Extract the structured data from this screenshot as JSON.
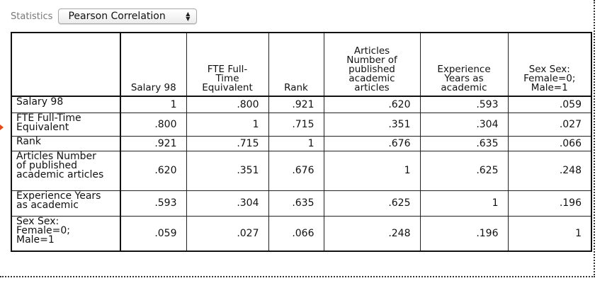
{
  "statistics": {
    "label": "Statistics",
    "selected": "Pearson Correlation"
  },
  "table": {
    "columns": [
      "Salary 98",
      "FTE Full-\nTime\nEquivalent",
      "Rank",
      "Articles\nNumber of\npublished\nacademic\narticles",
      "Experience\nYears as\nacademic",
      "Sex Sex:\nFemale=0;\nMale=1"
    ],
    "rows": [
      {
        "label": "Salary 98",
        "values": [
          "1",
          ".800",
          ".921",
          ".620",
          ".593",
          ".059"
        ]
      },
      {
        "label": "FTE Full-Time\nEquivalent",
        "values": [
          ".800",
          "1",
          ".715",
          ".351",
          ".304",
          ".027"
        ]
      },
      {
        "label": "Rank",
        "values": [
          ".921",
          ".715",
          "1",
          ".676",
          ".635",
          ".066"
        ]
      },
      {
        "label": "Articles Number\nof published\nacademic articles",
        "values": [
          ".620",
          ".351",
          ".676",
          "1",
          ".625",
          ".248"
        ]
      },
      {
        "label": "Experience Years\nas academic",
        "values": [
          ".593",
          ".304",
          ".635",
          ".625",
          "1",
          ".196"
        ]
      },
      {
        "label": "Sex Sex:\nFemale=0;\nMale=1",
        "values": [
          ".059",
          ".027",
          ".066",
          ".248",
          ".196",
          "1"
        ]
      }
    ]
  }
}
